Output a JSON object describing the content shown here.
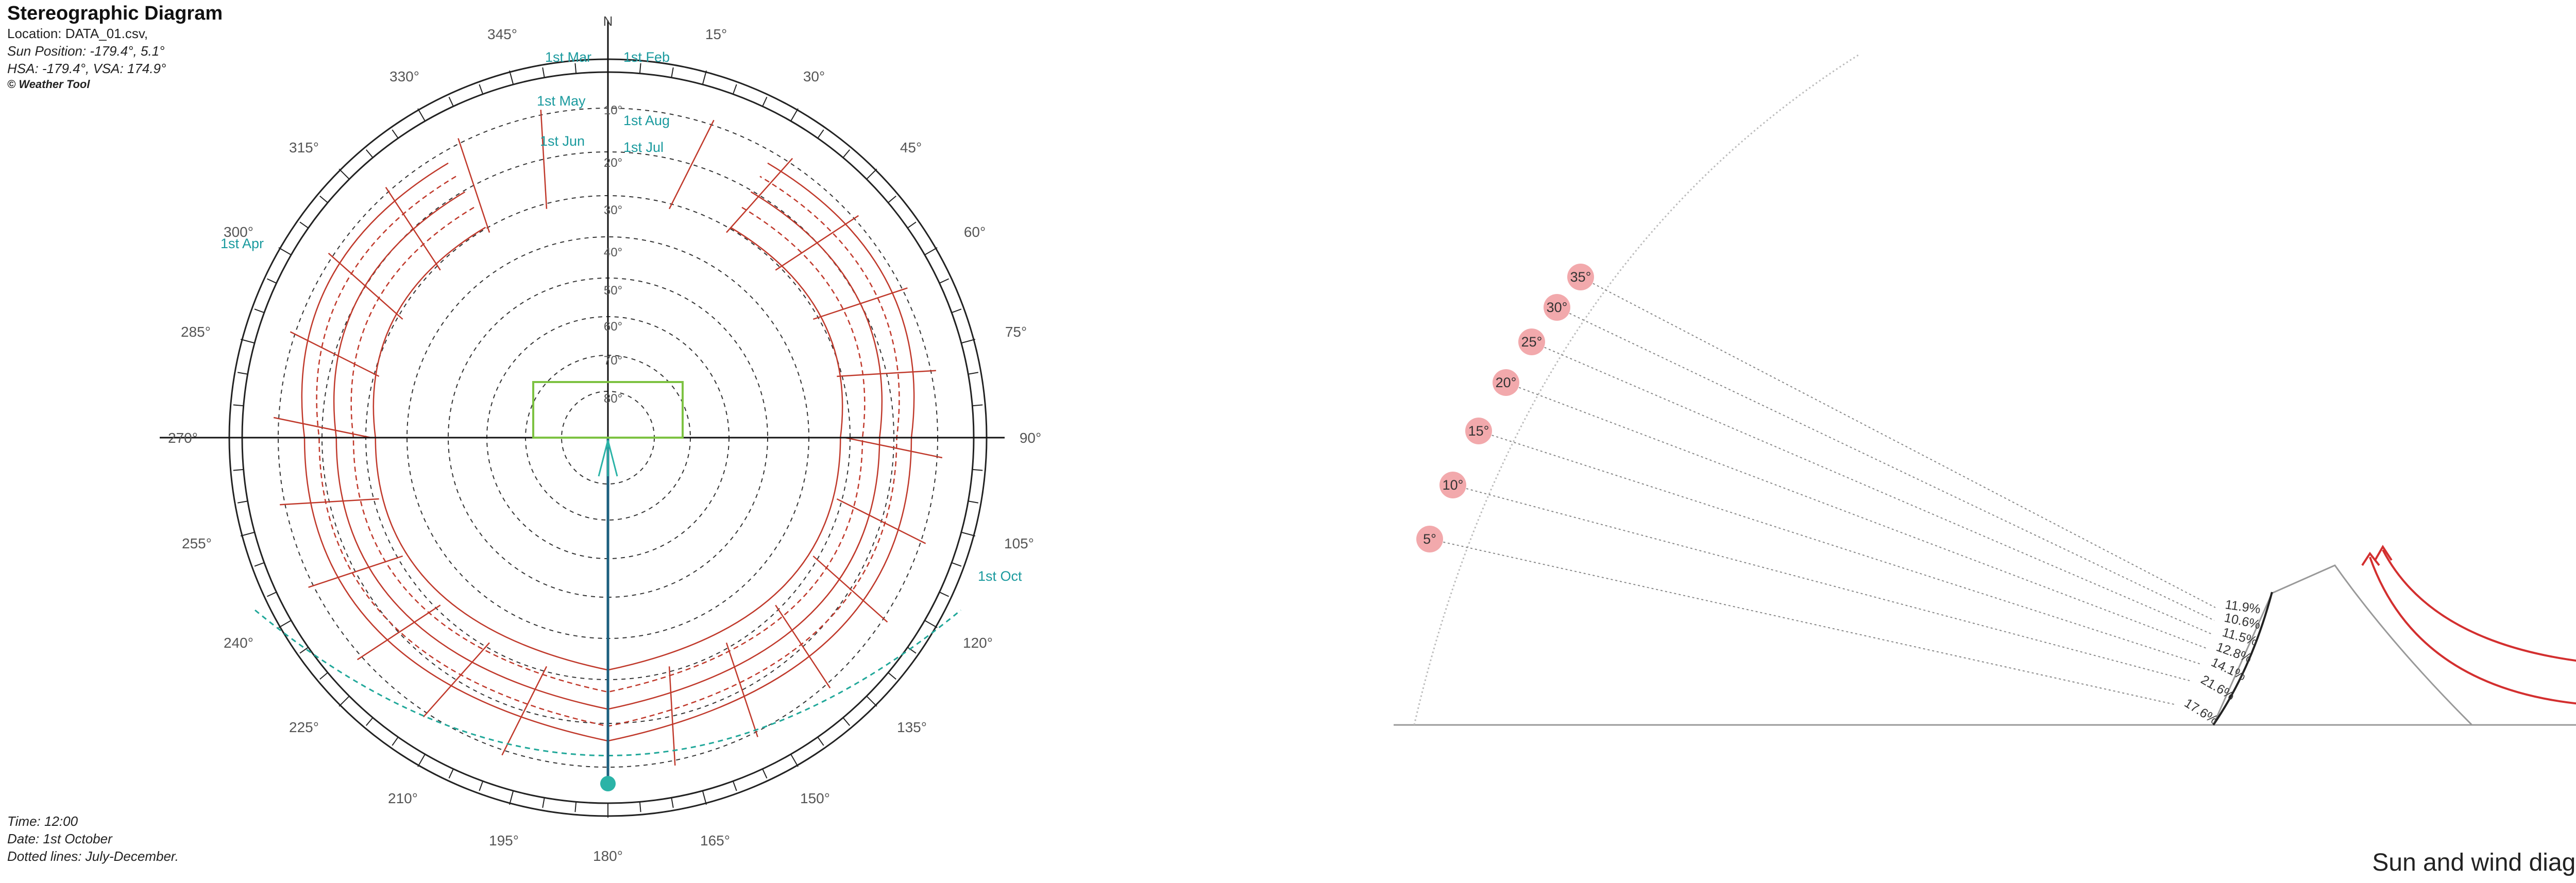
{
  "header": {
    "title": "Stereographic Diagram",
    "location": "Location: DATA_01.csv,",
    "sun_position": "Sun Position: -179.4°, 5.1°",
    "hsa_vsa": "HSA: -179.4°, VSA: 174.9°",
    "credit": "© Weather Tool"
  },
  "footer": {
    "time": "Time: 12:00",
    "date": "Date: 1st October",
    "note": "Dotted lines: July-December."
  },
  "caption": "Sun and wind diagram",
  "stereographic": {
    "north_label": "N",
    "azimuth_labels": [
      "345°",
      "15°",
      "330°",
      "30°",
      "315°",
      "45°",
      "300°",
      "60°",
      "285°",
      "75°",
      "270°",
      "90°",
      "255°",
      "105°",
      "240°",
      "120°",
      "225°",
      "135°",
      "210°",
      "150°",
      "195°",
      "165°",
      "180°"
    ],
    "altitude_labels": [
      "10°",
      "20°",
      "30°",
      "40°",
      "50°",
      "60°",
      "70°",
      "80°"
    ],
    "month_labels": [
      "1st Mar",
      "1st May",
      "1st Jun",
      "1st Feb",
      "1st Aug",
      "1st Jul",
      "1st Apr",
      "1st Oct"
    ],
    "sun_position": {
      "azimuth": -179.4,
      "altitude": 5.1
    },
    "colors": {
      "sun_path": "#c0392b",
      "date_line": "#21a89a",
      "month_label": "#1a9a9e",
      "horizontal_axis": "#c040c0",
      "shade_box": "#7dc242",
      "sun_marker": "#2bb3a7",
      "vertical_axis_south": "#1c5f7e"
    }
  },
  "sun_wind": {
    "angle_labels": [
      "35°",
      "30°",
      "25°",
      "20°",
      "15°",
      "10°",
      "5°"
    ],
    "percent_labels": [
      "11.9%",
      "10.6%",
      "11.5%",
      "12.8%",
      "14.1%",
      "21.6%",
      "17.6%"
    ],
    "colors": {
      "angle_marker": "#f2a9ac",
      "wind_arrow": "#d32f2f"
    }
  }
}
